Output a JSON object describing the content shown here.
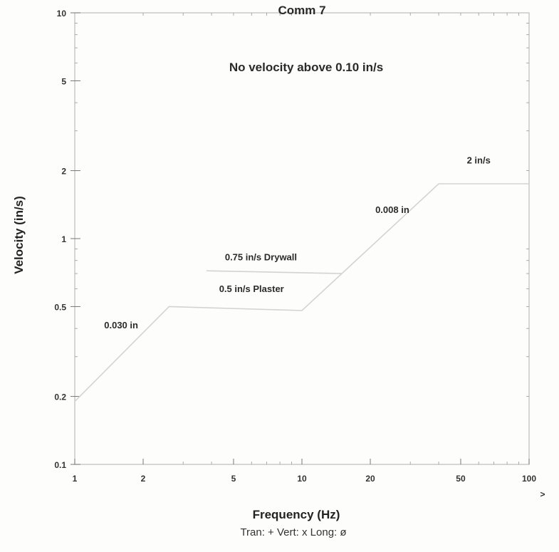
{
  "chart_data": {
    "type": "line",
    "title": "Comm 7",
    "subtitle": "No velocity above 0.10 in/s",
    "xlabel": "Frequency (Hz)",
    "ylabel": "Velocity (in/s)",
    "x_scale": "log",
    "y_scale": "log",
    "xlim": [
      1,
      100
    ],
    "ylim": [
      0.1,
      10
    ],
    "x_ticks": [
      1,
      2,
      5,
      10,
      20,
      50,
      100
    ],
    "x_tick_labels": [
      "1",
      "2",
      "5",
      "10",
      "20",
      "50",
      "100"
    ],
    "y_ticks": [
      0.1,
      0.2,
      0.5,
      1,
      2,
      5,
      10
    ],
    "y_tick_labels": [
      "0.1",
      "0.2",
      "0.5",
      "1",
      "2",
      "5",
      "10"
    ],
    "x_axis_arrow": ">",
    "legend_text": "Tran: +  Vert: x  Long: ø",
    "grid": false,
    "series": [
      {
        "points": [
          [
            1,
            0.19
          ],
          [
            2.6,
            0.5
          ],
          [
            10,
            0.48
          ],
          [
            40,
            1.75
          ],
          [
            100,
            1.75
          ]
        ]
      },
      {
        "points": [
          [
            3.8,
            0.72
          ],
          [
            15,
            0.7
          ]
        ]
      }
    ],
    "annotations": [
      {
        "text": "0.030 in",
        "x": 1.6,
        "y": 0.4
      },
      {
        "text": "0.75 in/s Drywall",
        "x": 6.6,
        "y": 0.8
      },
      {
        "text": "0.5 in/s Plaster",
        "x": 6.0,
        "y": 0.58
      },
      {
        "text": "0.008 in",
        "x": 25,
        "y": 1.3
      },
      {
        "text": "2 in/s",
        "x": 60,
        "y": 2.15
      }
    ]
  }
}
